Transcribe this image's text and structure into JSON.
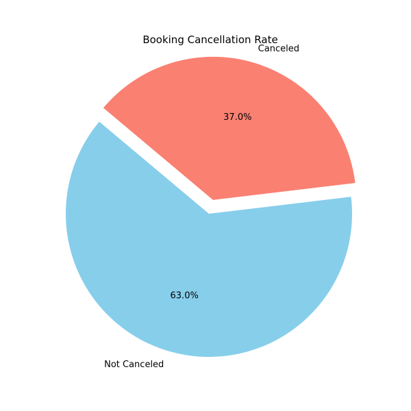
{
  "chart_data": {
    "type": "pie",
    "title": "Booking Cancellation Rate",
    "categories": [
      "Not Canceled",
      "Canceled"
    ],
    "values": [
      63.0,
      37.0
    ],
    "value_labels": [
      "63.0%",
      "37.0%"
    ],
    "colors": [
      "#87ceeb",
      "#fa8072"
    ],
    "exploded": [
      "Canceled"
    ],
    "legend": false
  }
}
